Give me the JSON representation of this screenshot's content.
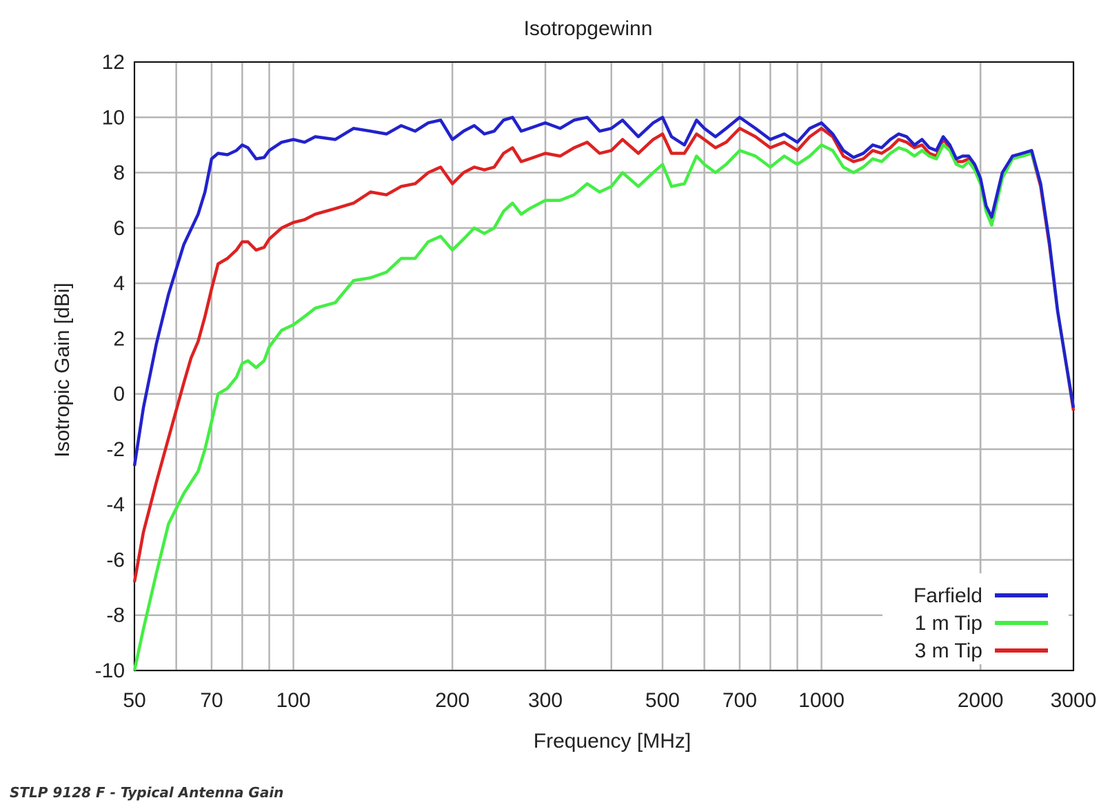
{
  "caption": "STLP 9128 F - Typical Antenna Gain",
  "chart_data": {
    "type": "line",
    "title": "Isotropgewinn",
    "xlabel": "Frequency [MHz]",
    "ylabel": "Isotropic Gain [dBi]",
    "xscale": "log",
    "xlim": [
      50,
      3000
    ],
    "ylim": [
      -10,
      12
    ],
    "xticks": [
      50,
      70,
      100,
      200,
      300,
      500,
      700,
      1000,
      2000,
      3000
    ],
    "xtick_labels": [
      "50",
      "70",
      "100",
      "200",
      "300",
      "500",
      "700",
      "1000",
      "2000",
      "3000"
    ],
    "yticks": [
      -10,
      -8,
      -6,
      -4,
      -2,
      0,
      2,
      4,
      6,
      8,
      10,
      12
    ],
    "ytick_labels": [
      "-10",
      "-8",
      "-6",
      "-4",
      "-2",
      "0",
      "2",
      "4",
      "6",
      "8",
      "10",
      "12"
    ],
    "grid": true,
    "legend_position": "bottom-right",
    "series": [
      {
        "name": "Farfield",
        "color": "#2222cc",
        "points": [
          [
            50,
            -2.6
          ],
          [
            52,
            -0.5
          ],
          [
            55,
            1.8
          ],
          [
            58,
            3.6
          ],
          [
            62,
            5.4
          ],
          [
            66,
            6.5
          ],
          [
            68,
            7.3
          ],
          [
            70,
            8.5
          ],
          [
            72,
            8.7
          ],
          [
            75,
            8.65
          ],
          [
            78,
            8.8
          ],
          [
            80,
            9.0
          ],
          [
            82,
            8.9
          ],
          [
            85,
            8.5
          ],
          [
            88,
            8.55
          ],
          [
            90,
            8.8
          ],
          [
            95,
            9.1
          ],
          [
            100,
            9.2
          ],
          [
            105,
            9.1
          ],
          [
            110,
            9.3
          ],
          [
            120,
            9.2
          ],
          [
            130,
            9.6
          ],
          [
            140,
            9.5
          ],
          [
            150,
            9.4
          ],
          [
            160,
            9.7
          ],
          [
            170,
            9.5
          ],
          [
            180,
            9.8
          ],
          [
            190,
            9.9
          ],
          [
            200,
            9.2
          ],
          [
            210,
            9.5
          ],
          [
            220,
            9.7
          ],
          [
            230,
            9.4
          ],
          [
            240,
            9.5
          ],
          [
            250,
            9.9
          ],
          [
            260,
            10.0
          ],
          [
            270,
            9.5
          ],
          [
            280,
            9.6
          ],
          [
            300,
            9.8
          ],
          [
            320,
            9.6
          ],
          [
            340,
            9.9
          ],
          [
            360,
            10.0
          ],
          [
            380,
            9.5
          ],
          [
            400,
            9.6
          ],
          [
            420,
            9.9
          ],
          [
            450,
            9.3
          ],
          [
            480,
            9.8
          ],
          [
            500,
            10.0
          ],
          [
            520,
            9.3
          ],
          [
            550,
            9.0
          ],
          [
            580,
            9.9
          ],
          [
            600,
            9.6
          ],
          [
            630,
            9.3
          ],
          [
            660,
            9.6
          ],
          [
            700,
            10.0
          ],
          [
            750,
            9.6
          ],
          [
            800,
            9.2
          ],
          [
            850,
            9.4
          ],
          [
            900,
            9.1
          ],
          [
            950,
            9.6
          ],
          [
            1000,
            9.8
          ],
          [
            1050,
            9.4
          ],
          [
            1100,
            8.8
          ],
          [
            1150,
            8.55
          ],
          [
            1200,
            8.7
          ],
          [
            1250,
            9.0
          ],
          [
            1300,
            8.9
          ],
          [
            1350,
            9.2
          ],
          [
            1400,
            9.4
          ],
          [
            1450,
            9.3
          ],
          [
            1500,
            9.0
          ],
          [
            1550,
            9.2
          ],
          [
            1600,
            8.9
          ],
          [
            1650,
            8.8
          ],
          [
            1700,
            9.3
          ],
          [
            1750,
            9.0
          ],
          [
            1800,
            8.5
          ],
          [
            1850,
            8.6
          ],
          [
            1900,
            8.6
          ],
          [
            1950,
            8.3
          ],
          [
            2000,
            7.8
          ],
          [
            2050,
            6.8
          ],
          [
            2100,
            6.4
          ],
          [
            2200,
            8.0
          ],
          [
            2300,
            8.6
          ],
          [
            2400,
            8.7
          ],
          [
            2500,
            8.8
          ],
          [
            2600,
            7.6
          ],
          [
            2700,
            5.5
          ],
          [
            2800,
            3.0
          ],
          [
            2900,
            1.2
          ],
          [
            3000,
            -0.5
          ]
        ]
      },
      {
        "name": "1 m Tip",
        "color": "#44ee44",
        "points": [
          [
            50,
            -10.0
          ],
          [
            52,
            -8.5
          ],
          [
            55,
            -6.5
          ],
          [
            58,
            -4.7
          ],
          [
            62,
            -3.6
          ],
          [
            66,
            -2.8
          ],
          [
            68,
            -2.0
          ],
          [
            70,
            -1.0
          ],
          [
            72,
            0.0
          ],
          [
            75,
            0.2
          ],
          [
            78,
            0.6
          ],
          [
            80,
            1.1
          ],
          [
            82,
            1.2
          ],
          [
            85,
            0.95
          ],
          [
            88,
            1.2
          ],
          [
            90,
            1.7
          ],
          [
            95,
            2.3
          ],
          [
            100,
            2.5
          ],
          [
            105,
            2.8
          ],
          [
            110,
            3.1
          ],
          [
            120,
            3.3
          ],
          [
            130,
            4.1
          ],
          [
            140,
            4.2
          ],
          [
            150,
            4.4
          ],
          [
            160,
            4.9
          ],
          [
            170,
            4.9
          ],
          [
            180,
            5.5
          ],
          [
            190,
            5.7
          ],
          [
            200,
            5.2
          ],
          [
            210,
            5.6
          ],
          [
            220,
            6.0
          ],
          [
            230,
            5.8
          ],
          [
            240,
            6.0
          ],
          [
            250,
            6.6
          ],
          [
            260,
            6.9
          ],
          [
            270,
            6.5
          ],
          [
            280,
            6.7
          ],
          [
            300,
            7.0
          ],
          [
            320,
            7.0
          ],
          [
            340,
            7.2
          ],
          [
            360,
            7.6
          ],
          [
            380,
            7.3
          ],
          [
            400,
            7.5
          ],
          [
            420,
            8.0
          ],
          [
            450,
            7.5
          ],
          [
            480,
            8.0
          ],
          [
            500,
            8.3
          ],
          [
            520,
            7.5
          ],
          [
            550,
            7.6
          ],
          [
            580,
            8.6
          ],
          [
            600,
            8.3
          ],
          [
            630,
            8.0
          ],
          [
            660,
            8.3
          ],
          [
            700,
            8.8
          ],
          [
            750,
            8.6
          ],
          [
            800,
            8.2
          ],
          [
            850,
            8.6
          ],
          [
            900,
            8.3
          ],
          [
            950,
            8.6
          ],
          [
            1000,
            9.0
          ],
          [
            1050,
            8.8
          ],
          [
            1100,
            8.2
          ],
          [
            1150,
            8.0
          ],
          [
            1200,
            8.2
          ],
          [
            1250,
            8.5
          ],
          [
            1300,
            8.4
          ],
          [
            1350,
            8.7
          ],
          [
            1400,
            8.9
          ],
          [
            1450,
            8.8
          ],
          [
            1500,
            8.6
          ],
          [
            1550,
            8.8
          ],
          [
            1600,
            8.6
          ],
          [
            1650,
            8.5
          ],
          [
            1700,
            9.0
          ],
          [
            1750,
            8.8
          ],
          [
            1800,
            8.3
          ],
          [
            1850,
            8.2
          ],
          [
            1900,
            8.4
          ],
          [
            1950,
            8.1
          ],
          [
            2000,
            7.6
          ],
          [
            2050,
            6.6
          ],
          [
            2100,
            6.1
          ],
          [
            2200,
            7.8
          ],
          [
            2300,
            8.5
          ],
          [
            2400,
            8.6
          ],
          [
            2500,
            8.7
          ],
          [
            2600,
            7.6
          ],
          [
            2700,
            5.5
          ],
          [
            2800,
            3.0
          ],
          [
            2900,
            1.2
          ],
          [
            3000,
            -0.5
          ]
        ]
      },
      {
        "name": "3 m Tip",
        "color": "#dd2222",
        "points": [
          [
            50,
            -6.8
          ],
          [
            52,
            -5.0
          ],
          [
            55,
            -3.2
          ],
          [
            58,
            -1.6
          ],
          [
            62,
            0.4
          ],
          [
            64,
            1.3
          ],
          [
            66,
            1.9
          ],
          [
            68,
            2.8
          ],
          [
            70,
            3.8
          ],
          [
            72,
            4.7
          ],
          [
            75,
            4.9
          ],
          [
            78,
            5.2
          ],
          [
            80,
            5.5
          ],
          [
            82,
            5.5
          ],
          [
            85,
            5.2
          ],
          [
            88,
            5.3
          ],
          [
            90,
            5.6
          ],
          [
            95,
            6.0
          ],
          [
            100,
            6.2
          ],
          [
            105,
            6.3
          ],
          [
            110,
            6.5
          ],
          [
            120,
            6.7
          ],
          [
            130,
            6.9
          ],
          [
            140,
            7.3
          ],
          [
            150,
            7.2
          ],
          [
            160,
            7.5
          ],
          [
            170,
            7.6
          ],
          [
            180,
            8.0
          ],
          [
            190,
            8.2
          ],
          [
            200,
            7.6
          ],
          [
            210,
            8.0
          ],
          [
            220,
            8.2
          ],
          [
            230,
            8.1
          ],
          [
            240,
            8.2
          ],
          [
            250,
            8.7
          ],
          [
            260,
            8.9
          ],
          [
            270,
            8.4
          ],
          [
            280,
            8.5
          ],
          [
            300,
            8.7
          ],
          [
            320,
            8.6
          ],
          [
            340,
            8.9
          ],
          [
            360,
            9.1
          ],
          [
            380,
            8.7
          ],
          [
            400,
            8.8
          ],
          [
            420,
            9.2
          ],
          [
            450,
            8.7
          ],
          [
            480,
            9.2
          ],
          [
            500,
            9.4
          ],
          [
            520,
            8.7
          ],
          [
            550,
            8.7
          ],
          [
            580,
            9.4
          ],
          [
            600,
            9.2
          ],
          [
            630,
            8.9
          ],
          [
            660,
            9.1
          ],
          [
            700,
            9.6
          ],
          [
            750,
            9.3
          ],
          [
            800,
            8.9
          ],
          [
            850,
            9.1
          ],
          [
            900,
            8.8
          ],
          [
            950,
            9.3
          ],
          [
            1000,
            9.6
          ],
          [
            1050,
            9.3
          ],
          [
            1100,
            8.6
          ],
          [
            1150,
            8.4
          ],
          [
            1200,
            8.5
          ],
          [
            1250,
            8.8
          ],
          [
            1300,
            8.7
          ],
          [
            1350,
            8.9
          ],
          [
            1400,
            9.2
          ],
          [
            1450,
            9.1
          ],
          [
            1500,
            8.9
          ],
          [
            1550,
            9.0
          ],
          [
            1600,
            8.7
          ],
          [
            1650,
            8.6
          ],
          [
            1700,
            9.2
          ],
          [
            1750,
            8.9
          ],
          [
            1800,
            8.4
          ],
          [
            1850,
            8.4
          ],
          [
            1900,
            8.5
          ],
          [
            1950,
            8.2
          ],
          [
            2000,
            7.7
          ],
          [
            2050,
            6.7
          ],
          [
            2100,
            6.3
          ],
          [
            2200,
            7.9
          ],
          [
            2300,
            8.6
          ],
          [
            2400,
            8.6
          ],
          [
            2500,
            8.7
          ],
          [
            2600,
            7.5
          ],
          [
            2700,
            5.4
          ],
          [
            2800,
            3.0
          ],
          [
            2900,
            1.2
          ],
          [
            3000,
            -0.6
          ]
        ]
      }
    ]
  }
}
